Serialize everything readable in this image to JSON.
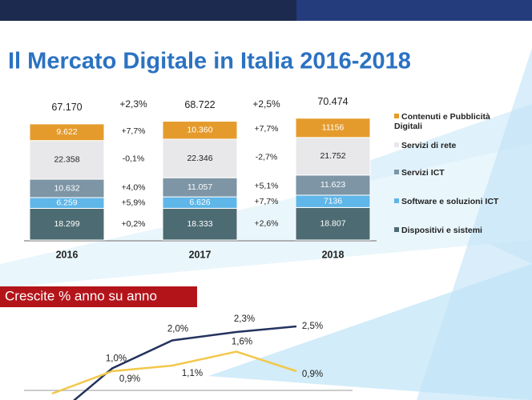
{
  "chart_data": [
    {
      "type": "stacked_bar",
      "title": "Il Mercato Digitale in Italia 2016-2018",
      "categories": [
        "2016",
        "2017",
        "2018"
      ],
      "ylim": [
        0,
        75000
      ],
      "series": [
        {
          "name": "Dispositivi e sistemi",
          "color": "#4d6b72",
          "values": [
            18299,
            18333,
            18807
          ],
          "value_labels": [
            "18.299",
            "18.333",
            "18.807"
          ],
          "growth_labels": [
            "+0,2%",
            "+2,6%"
          ]
        },
        {
          "name": "Software e soluzioni ICT",
          "color": "#5fb6e8",
          "values": [
            6259,
            6626,
            7136
          ],
          "value_labels": [
            "6.259",
            "6.626",
            "7136"
          ],
          "growth_labels": [
            "+5,9%",
            "+7,7%"
          ]
        },
        {
          "name": "Servizi ICT",
          "color": "#7d95a5",
          "values": [
            10632,
            11057,
            11623
          ],
          "value_labels": [
            "10.632",
            "11.057",
            "11.623"
          ],
          "growth_labels": [
            "+4,0%",
            "+5,1%"
          ]
        },
        {
          "name": "Servizi di rete",
          "color": "#e8e8ea",
          "values": [
            22358,
            22346,
            21752
          ],
          "value_labels": [
            "22.358",
            "22.346",
            "21.752"
          ],
          "growth_labels": [
            "-0,1%",
            "-2,7%"
          ]
        },
        {
          "name": "Contenuti e Pubblicità Digitali",
          "color": "#e59b2c",
          "values": [
            9622,
            10360,
            11156
          ],
          "value_labels": [
            "9.622",
            "10.360",
            "11156"
          ],
          "growth_labels": [
            "+7,7%",
            "+7,7%"
          ]
        }
      ],
      "totals": {
        "values": [
          67170,
          68722,
          70474
        ],
        "value_labels": [
          "67.170",
          "68.722",
          "70.474"
        ],
        "growth_labels": [
          "+2,3%",
          "+2,5%"
        ]
      }
    },
    {
      "type": "line",
      "title": "Crescite % anno su anno",
      "categories": [
        null,
        null,
        null,
        null,
        null
      ],
      "ylim": [
        -0.1,
        3.0
      ],
      "series": [
        {
          "color": "#24335f",
          "values": [
            -0.8,
            1.0,
            2.0,
            2.3,
            2.5
          ],
          "value_labels": [
            null,
            "1,0%",
            "2,0%",
            "2,3%",
            "2,5%"
          ]
        },
        {
          "color": "#f2c84b",
          "values": [
            0.1,
            0.9,
            1.1,
            1.6,
            0.9
          ],
          "value_labels": [
            null,
            "0,9%",
            "1,1%",
            "1,6%",
            "0,9%"
          ]
        }
      ]
    }
  ]
}
